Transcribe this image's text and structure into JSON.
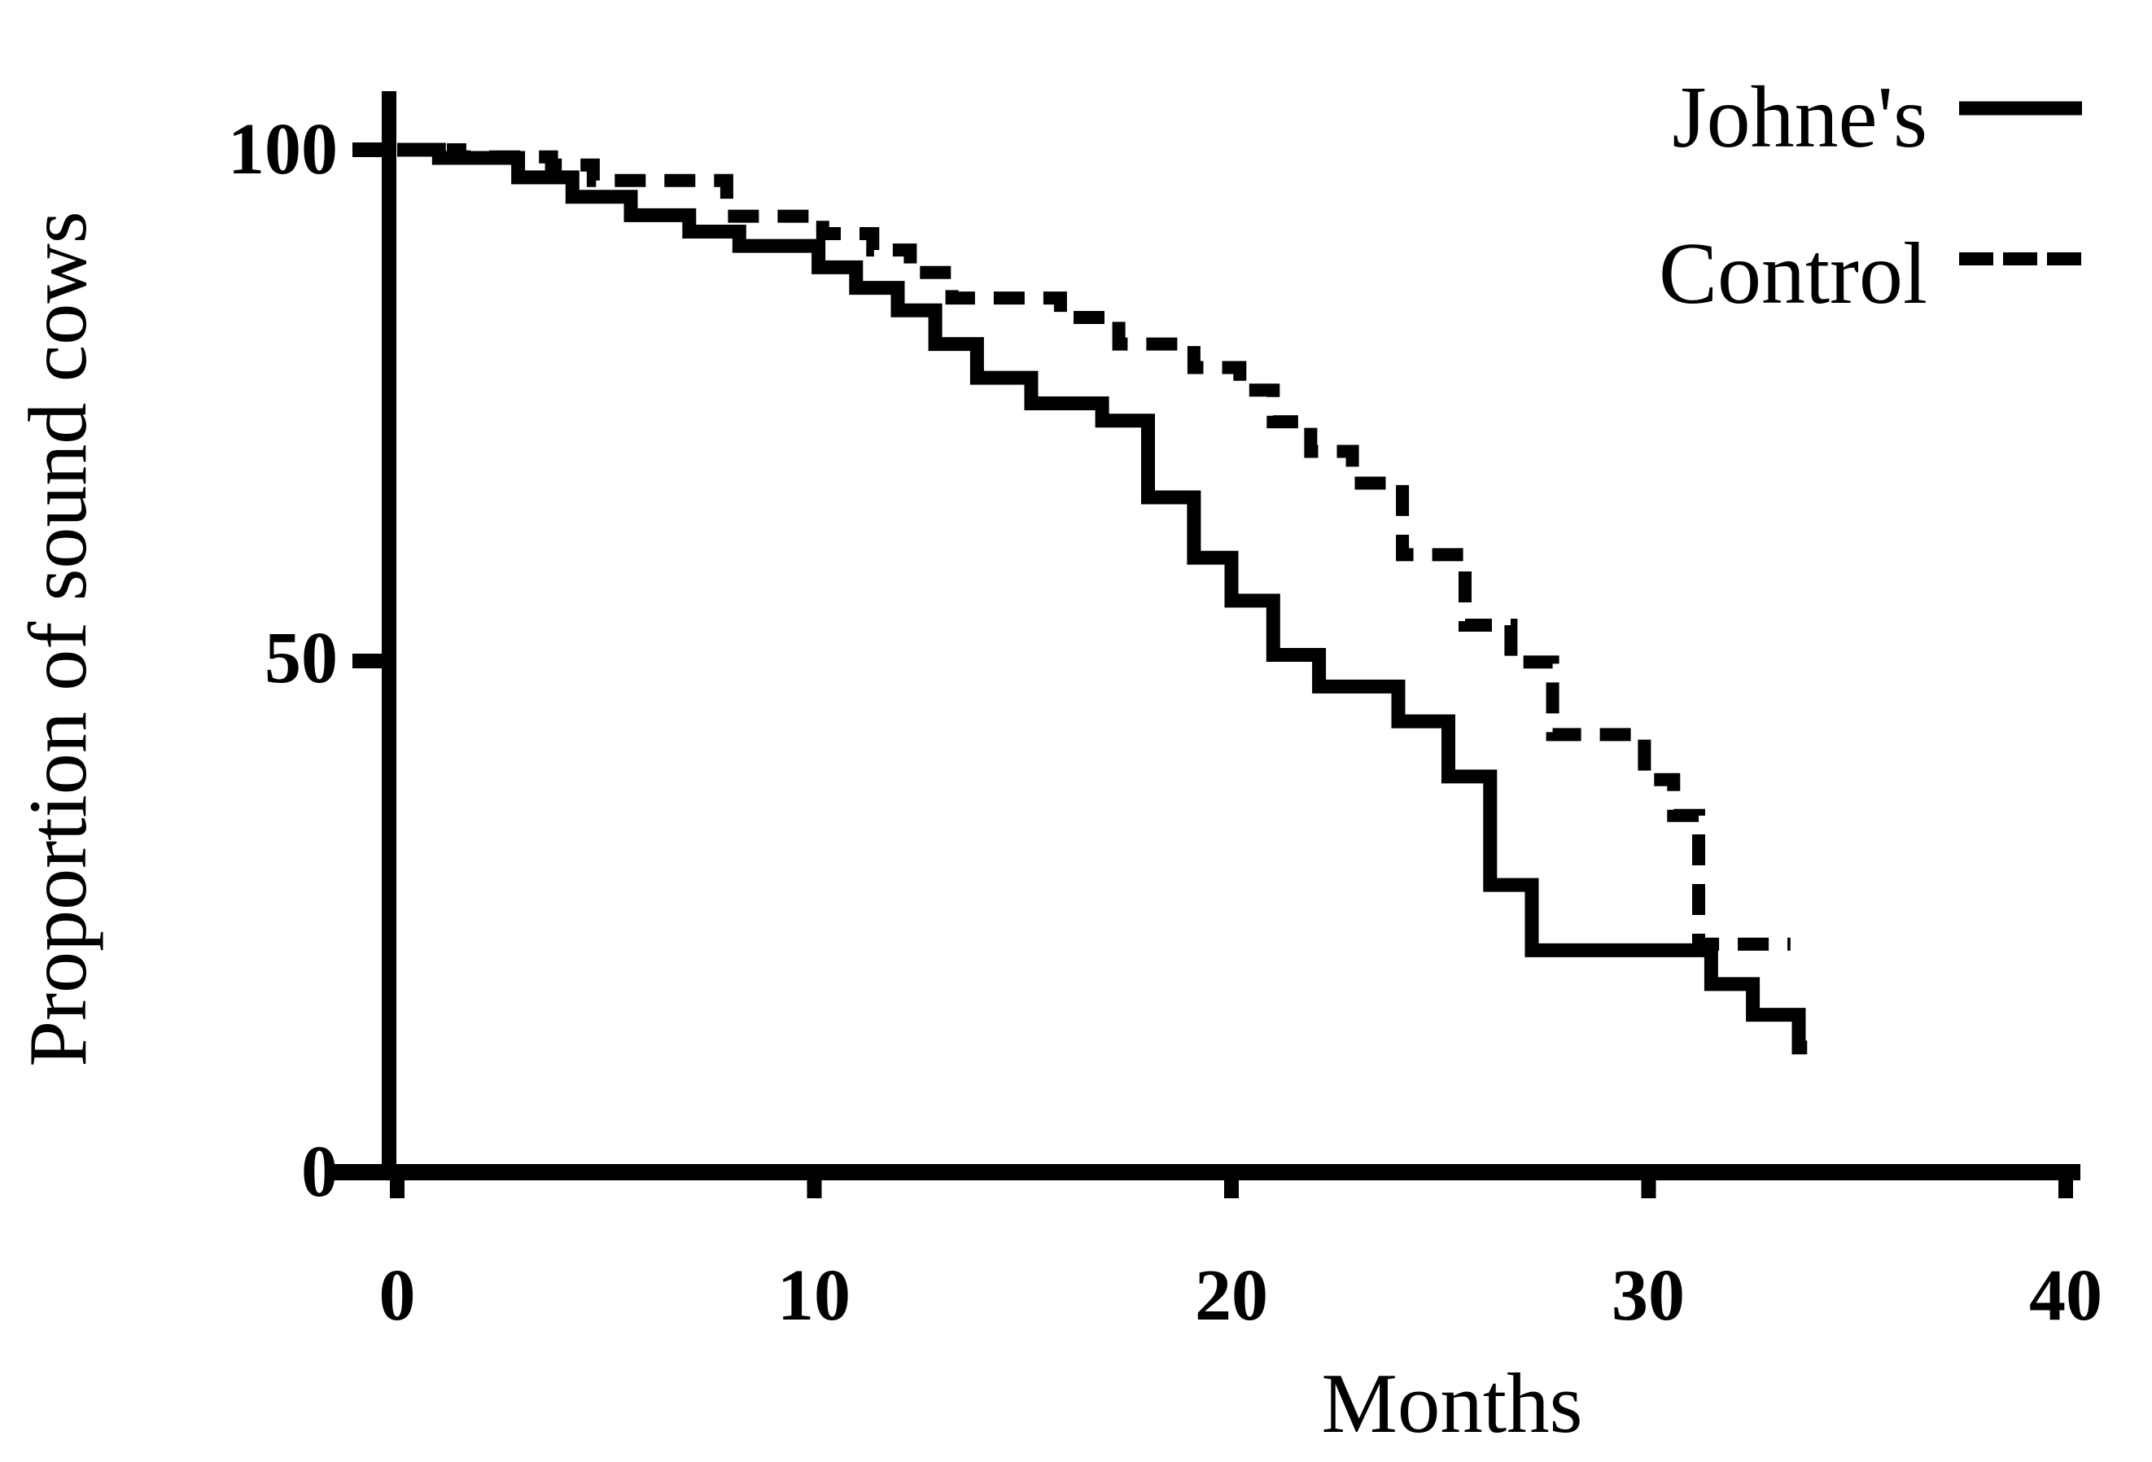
{
  "figure": {
    "background_color": "#ffffff",
    "ink_color": "#000000"
  },
  "chart_data": {
    "type": "line",
    "variant": "kaplan-meier-step-survival",
    "title": "",
    "xlabel": "Months",
    "ylabel": "Proportion of sound cows",
    "xlim": [
      0,
      40
    ],
    "ylim": [
      0,
      100
    ],
    "grid": false,
    "legend_position": "top-right",
    "x_ticks": [
      0,
      10,
      20,
      30,
      40
    ],
    "y_ticks": [
      0,
      50,
      100
    ],
    "x_tick_labels": [
      "0",
      "10",
      "20",
      "30",
      "40"
    ],
    "y_tick_labels": [
      "0",
      "50",
      "100"
    ],
    "legend": [
      {
        "label": "Johne's",
        "line_style": "solid"
      },
      {
        "label": "Control",
        "line_style": "dashed"
      }
    ],
    "series": [
      {
        "name": "Johne's",
        "line_style": "solid",
        "color": "#000000",
        "unit": "percent sound",
        "points": [
          [
            0,
            100
          ],
          [
            1.0,
            99.2
          ],
          [
            2.9,
            97.3
          ],
          [
            4.2,
            95.4
          ],
          [
            5.6,
            93.6
          ],
          [
            7.0,
            92.0
          ],
          [
            8.2,
            90.6
          ],
          [
            10.1,
            88.5
          ],
          [
            11.0,
            86.5
          ],
          [
            12.0,
            84.3
          ],
          [
            12.9,
            81.0
          ],
          [
            13.9,
            77.7
          ],
          [
            15.2,
            75.2
          ],
          [
            16.9,
            73.5
          ],
          [
            18.0,
            66.0
          ],
          [
            19.1,
            60.1
          ],
          [
            20.0,
            55.9
          ],
          [
            21.0,
            50.6
          ],
          [
            22.1,
            47.5
          ],
          [
            24.0,
            44.1
          ],
          [
            25.2,
            38.7
          ],
          [
            26.2,
            28.1
          ],
          [
            27.2,
            21.7
          ],
          [
            31.5,
            18.4
          ],
          [
            32.5,
            15.4
          ],
          [
            33.6,
            12.2
          ]
        ],
        "end_month": 33.8
      },
      {
        "name": "Control",
        "line_style": "dashed",
        "color": "#000000",
        "unit": "percent sound",
        "points": [
          [
            0,
            100
          ],
          [
            1.5,
            99.3
          ],
          [
            3.7,
            98.5
          ],
          [
            4.7,
            97.0
          ],
          [
            7.9,
            93.5
          ],
          [
            10.2,
            91.8
          ],
          [
            11.4,
            90.2
          ],
          [
            12.3,
            88.0
          ],
          [
            13.3,
            85.5
          ],
          [
            15.9,
            83.6
          ],
          [
            17.3,
            81.0
          ],
          [
            19.1,
            78.7
          ],
          [
            20.2,
            76.5
          ],
          [
            21.0,
            73.4
          ],
          [
            21.9,
            70.5
          ],
          [
            22.9,
            67.4
          ],
          [
            24.1,
            60.4
          ],
          [
            25.6,
            53.5
          ],
          [
            26.7,
            49.9
          ],
          [
            27.7,
            42.8
          ],
          [
            29.9,
            38.4
          ],
          [
            30.6,
            34.9
          ],
          [
            31.2,
            22.3
          ]
        ],
        "end_month": 33.4
      }
    ]
  }
}
